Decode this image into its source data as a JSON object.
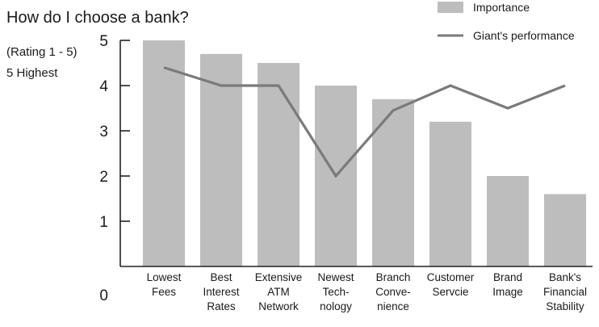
{
  "chart_data": {
    "type": "bar",
    "title": "How do I choose a bank?",
    "ylabel_lines": [
      "(Rating 1 - 5)",
      "5 Highest"
    ],
    "ylim": [
      0,
      5
    ],
    "yticks": [
      "0",
      "1",
      "2",
      "3",
      "4",
      "5"
    ],
    "grid": false,
    "legend_position": "top-right",
    "categories": [
      [
        "Lowest",
        "Fees"
      ],
      [
        "Best",
        "Interest",
        "Rates"
      ],
      [
        "Extensive",
        "ATM",
        "Network"
      ],
      [
        "Newest",
        "Tech-",
        "nology"
      ],
      [
        "Branch",
        "Conve-",
        "nience"
      ],
      [
        "Customer",
        "Servcie"
      ],
      [
        "Brand",
        "Image"
      ],
      [
        "Bank's",
        "Financial",
        "Stability"
      ]
    ],
    "series": [
      {
        "name": "Importance",
        "kind": "bar",
        "color": "#bdbdbd",
        "values": [
          5.0,
          4.7,
          4.5,
          4.0,
          3.7,
          3.2,
          2.0,
          1.6
        ]
      },
      {
        "name": "Giant's performance",
        "kind": "line",
        "color": "#7a7a7a",
        "values": [
          4.4,
          4.0,
          4.0,
          2.0,
          3.45,
          4.0,
          3.5,
          4.0
        ]
      }
    ]
  }
}
